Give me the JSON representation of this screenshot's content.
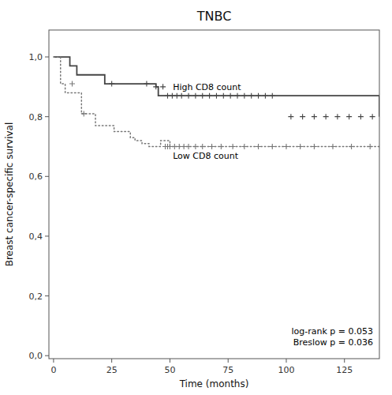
{
  "chart_data": {
    "type": "step",
    "title": "TNBC",
    "x_label": "Time (months)",
    "y_label": "Breast cancer-specific survival",
    "xlim": [
      -2,
      140
    ],
    "ylim": [
      -0.01,
      1.09
    ],
    "xticks": [
      0,
      25,
      50,
      75,
      100,
      125
    ],
    "yticks": [
      {
        "value": 0.0,
        "label": "0,0"
      },
      {
        "value": 0.2,
        "label": "0,2"
      },
      {
        "value": 0.4,
        "label": "0,4"
      },
      {
        "value": 0.6,
        "label": "0,6"
      },
      {
        "value": 0.8,
        "label": "0,8"
      },
      {
        "value": 1.0,
        "label": "1,0"
      }
    ],
    "grid": false,
    "annotation": "log-rank p = 0.053\nBreslow p = 0.036",
    "series": [
      {
        "name": "High CD8 count",
        "color": "#444444",
        "line_style": "solid",
        "marker": "plus",
        "x": [
          0,
          4,
          7,
          10,
          14,
          18,
          22,
          24,
          27,
          30,
          35,
          44,
          45,
          50,
          55,
          100,
          140
        ],
        "values": [
          1.0,
          1.0,
          0.97,
          0.94,
          0.94,
          0.94,
          0.91,
          0.91,
          0.91,
          0.91,
          0.91,
          0.9,
          0.87,
          0.87,
          0.87,
          0.87,
          0.8
        ],
        "censor_x": [
          25,
          40,
          44,
          47,
          49,
          51,
          53,
          55,
          58,
          61,
          64,
          67,
          70,
          73,
          76,
          79,
          82,
          85,
          88,
          91,
          94,
          102,
          107,
          112,
          117,
          122,
          127,
          132,
          137
        ],
        "censor_values": [
          0.91,
          0.91,
          0.9,
          0.9,
          0.87,
          0.87,
          0.87,
          0.87,
          0.87,
          0.87,
          0.87,
          0.87,
          0.87,
          0.87,
          0.87,
          0.87,
          0.87,
          0.87,
          0.87,
          0.87,
          0.87,
          0.8,
          0.8,
          0.8,
          0.8,
          0.8,
          0.8,
          0.8,
          0.8
        ]
      },
      {
        "name": "Low CD8 count",
        "color": "#777777",
        "line_style": "dotted",
        "marker": "plus",
        "x": [
          0,
          3,
          5,
          8,
          12,
          15,
          18,
          22,
          26,
          29,
          33,
          35,
          38,
          41,
          44,
          46,
          48,
          50,
          140
        ],
        "values": [
          1.0,
          0.91,
          0.88,
          0.88,
          0.81,
          0.81,
          0.77,
          0.77,
          0.75,
          0.75,
          0.73,
          0.72,
          0.71,
          0.7,
          0.7,
          0.72,
          0.72,
          0.7,
          0.7
        ],
        "censor_x": [
          8,
          13,
          48,
          49,
          50,
          52,
          54,
          56,
          58,
          61,
          64,
          68,
          72,
          77,
          82,
          88,
          94,
          100,
          106,
          112,
          120,
          128,
          136
        ],
        "censor_values": [
          0.91,
          0.81,
          0.7,
          0.7,
          0.7,
          0.7,
          0.7,
          0.7,
          0.7,
          0.7,
          0.7,
          0.7,
          0.7,
          0.7,
          0.7,
          0.7,
          0.7,
          0.7,
          0.7,
          0.7,
          0.7,
          0.7,
          0.7
        ]
      }
    ]
  }
}
